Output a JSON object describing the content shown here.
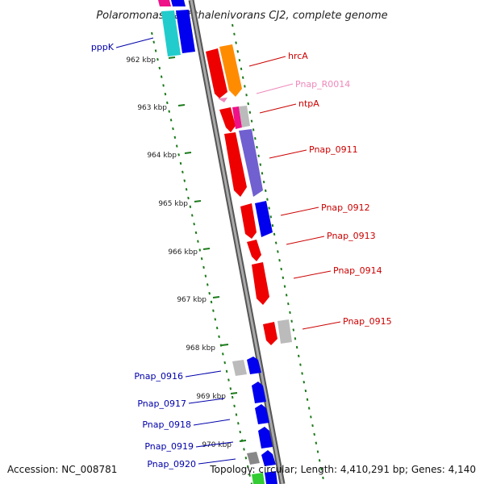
{
  "title": "Polaromonas naphthalenivorans CJ2, complete genome",
  "accession": "Accession: NC_008781",
  "topology": "Topology: circular; Length: 4,410,291 bp; Genes: 4,140",
  "colors": {
    "genome": "#888888",
    "ticks": "#1a7a1a",
    "red": "#ee0000",
    "blue": "#0000ee",
    "orange": "#ff8c00",
    "magenta": "#ee1188",
    "pink_label": "#ee88bb",
    "purple": "#7060d0",
    "gray": "#bbbbbb",
    "cyan": "#22cccc",
    "green": "#33cc33",
    "label_red": "#cc0000",
    "label_blue": "#0000aa"
  },
  "scale_labels": [
    "962 kbp",
    "963 kbp",
    "964 kbp",
    "965 kbp",
    "966 kbp",
    "967 kbp",
    "968 kbp",
    "969 kbp",
    "970 kbp"
  ],
  "genes_right": [
    {
      "name": "hrcA",
      "color": "label_red"
    },
    {
      "name": "Pnap_R0014",
      "color": "pink_label"
    },
    {
      "name": "ntpA",
      "color": "label_red"
    },
    {
      "name": "Pnap_0911",
      "color": "label_red"
    },
    {
      "name": "Pnap_0912",
      "color": "label_red"
    },
    {
      "name": "Pnap_0913",
      "color": "label_red"
    },
    {
      "name": "Pnap_0914",
      "color": "label_red"
    },
    {
      "name": "Pnap_0915",
      "color": "label_red"
    }
  ],
  "genes_left": [
    {
      "name": "pppK",
      "color": "label_blue"
    },
    {
      "name": "Pnap_0916",
      "color": "label_blue"
    },
    {
      "name": "Pnap_0917",
      "color": "label_blue"
    },
    {
      "name": "Pnap_0918",
      "color": "label_blue"
    },
    {
      "name": "Pnap_0919",
      "color": "label_blue"
    },
    {
      "name": "Pnap_0920",
      "color": "label_blue"
    }
  ]
}
